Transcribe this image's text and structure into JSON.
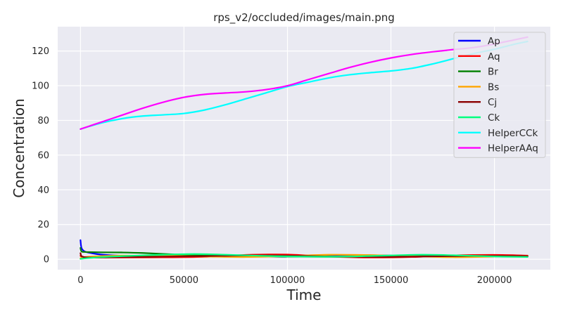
{
  "chart_data": {
    "type": "line",
    "title": "rps_v2/occluded/images/main.png",
    "xlabel": "Time",
    "ylabel": "Concentration",
    "xlim": [
      -11000,
      227000
    ],
    "ylim": [
      -6,
      134
    ],
    "xticks": [
      0,
      50000,
      100000,
      150000,
      200000
    ],
    "yticks": [
      0,
      20,
      40,
      60,
      80,
      100,
      120
    ],
    "grid": true,
    "legend_position": "top-right",
    "series": [
      {
        "name": "Ap",
        "color": "#0000ff",
        "x": [
          0,
          500,
          2000,
          5000,
          10000,
          20000,
          40000,
          60000,
          80000,
          100000,
          120000,
          140000,
          160000,
          180000,
          200000,
          216000
        ],
        "y": [
          11,
          6.5,
          4.5,
          3.6,
          2.7,
          2.0,
          2.2,
          2.4,
          1.8,
          1.5,
          2.0,
          2.3,
          1.8,
          1.6,
          1.9,
          1.8
        ]
      },
      {
        "name": "Aq",
        "color": "#ff0000",
        "x": [
          0,
          500,
          2000,
          5000,
          10000,
          20000,
          40000,
          60000,
          80000,
          100000,
          120000,
          140000,
          160000,
          180000,
          200000,
          216000
        ],
        "y": [
          2.0,
          1.5,
          1.2,
          1.1,
          1.0,
          1.0,
          1.1,
          1.4,
          2.5,
          2.7,
          1.5,
          1.0,
          1.3,
          2.2,
          2.5,
          2.1
        ]
      },
      {
        "name": "Br",
        "color": "#008000",
        "x": [
          0,
          500,
          2000,
          5000,
          10000,
          20000,
          30000,
          45000,
          60000,
          80000,
          100000,
          120000,
          140000,
          160000,
          180000,
          200000,
          216000
        ],
        "y": [
          6.5,
          4.5,
          4.2,
          4.1,
          4.0,
          3.9,
          3.6,
          2.8,
          2.2,
          1.8,
          1.5,
          1.4,
          1.6,
          2.0,
          2.1,
          1.7,
          1.5
        ]
      },
      {
        "name": "Bs",
        "color": "#ffa500",
        "x": [
          0,
          500,
          2000,
          5000,
          10000,
          20000,
          40000,
          60000,
          80000,
          100000,
          120000,
          140000,
          160000,
          180000,
          200000,
          216000
        ],
        "y": [
          0.5,
          0.8,
          1.2,
          1.5,
          1.8,
          2.1,
          2.0,
          1.6,
          1.3,
          1.8,
          2.6,
          2.4,
          1.7,
          1.2,
          1.5,
          1.9
        ]
      },
      {
        "name": "Cj",
        "color": "#8b0000",
        "x": [
          0,
          500,
          2000,
          5000,
          10000,
          20000,
          40000,
          60000,
          80000,
          100000,
          120000,
          140000,
          160000,
          180000,
          200000,
          216000
        ],
        "y": [
          3.5,
          1.8,
          1.2,
          1.0,
          1.0,
          1.2,
          1.5,
          1.8,
          2.2,
          2.1,
          1.6,
          1.3,
          1.5,
          1.8,
          1.9,
          1.8
        ]
      },
      {
        "name": "Ck",
        "color": "#00ff7f",
        "x": [
          0,
          500,
          2000,
          5000,
          10000,
          20000,
          40000,
          55000,
          70000,
          90000,
          110000,
          130000,
          150000,
          165000,
          180000,
          200000,
          216000
        ],
        "y": [
          0.2,
          0.3,
          0.5,
          0.8,
          1.2,
          1.8,
          2.6,
          3.0,
          2.6,
          1.9,
          1.5,
          1.6,
          2.2,
          2.6,
          2.3,
          1.6,
          1.3
        ]
      },
      {
        "name": "HelperCCk",
        "color": "#00ffff",
        "x": [
          0,
          10000,
          20000,
          30000,
          40000,
          50000,
          60000,
          70000,
          80000,
          90000,
          100000,
          110000,
          120000,
          130000,
          140000,
          150000,
          160000,
          170000,
          180000,
          190000,
          200000,
          210000,
          216000
        ],
        "y": [
          75,
          78.5,
          81,
          82.5,
          83.2,
          84,
          86,
          89,
          92.5,
          96,
          99.5,
          102,
          104.5,
          106.3,
          107.5,
          108.5,
          110,
          112.5,
          115.5,
          118.5,
          121,
          124,
          125.5
        ]
      },
      {
        "name": "HelperAAq",
        "color": "#ff00ff",
        "x": [
          0,
          10000,
          20000,
          30000,
          40000,
          50000,
          60000,
          70000,
          80000,
          90000,
          100000,
          110000,
          120000,
          130000,
          140000,
          150000,
          160000,
          170000,
          180000,
          190000,
          200000,
          210000,
          216000
        ],
        "y": [
          75,
          79,
          83,
          87,
          90.5,
          93.3,
          95,
          95.8,
          96.5,
          97.8,
          100,
          103.5,
          107,
          110.5,
          113.5,
          116,
          118,
          119.5,
          120.8,
          122,
          124,
          126.5,
          128
        ]
      }
    ]
  },
  "colors": {
    "plot_background": "#eaeaf2",
    "grid": "#ffffff",
    "text": "#262626"
  }
}
